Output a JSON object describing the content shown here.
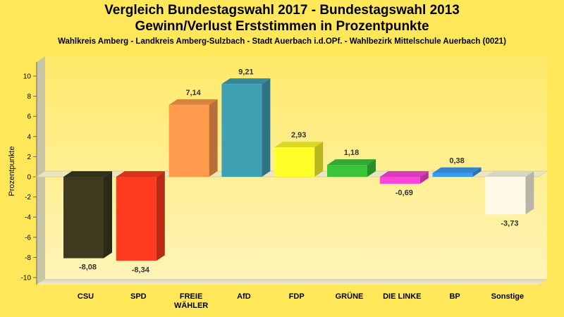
{
  "chart_data": {
    "type": "bar",
    "title": "Vergleich Bundestagswahl 2017 - Bundestagswahl 2013",
    "subtitle_line": "Gewinn/Verlust Erststimmen in Prozentpunkte",
    "subtitle": "Wahlkreis Amberg - Landkreis Amberg-Sulzbach - Stadt Auerbach i.d.OPf. - Wahlbezirk Mittelschule Auerbach (0021)",
    "ylabel": "Prozentpunkte",
    "ylim": [
      -10,
      10
    ],
    "yticks": [
      -10,
      -8,
      -6,
      -4,
      -2,
      0,
      2,
      4,
      6,
      8,
      10
    ],
    "grid": false,
    "categories": [
      "CSU",
      "SPD",
      "FREIE WÄHLER",
      "AfD",
      "FDP",
      "GRÜNE",
      "DIE LINKE",
      "BP",
      "Sonstige"
    ],
    "category_lines": [
      [
        "CSU"
      ],
      [
        "SPD"
      ],
      [
        "FREIE",
        "WÄHLER"
      ],
      [
        "AfD"
      ],
      [
        "FDP"
      ],
      [
        "GRÜNE"
      ],
      [
        "DIE LINKE"
      ],
      [
        "BP"
      ],
      [
        "Sonstige"
      ]
    ],
    "values": [
      -8.08,
      -8.34,
      7.14,
      9.21,
      2.93,
      1.18,
      -0.69,
      0.38,
      -3.73
    ],
    "value_labels": [
      "-8,08",
      "-8,34",
      "7,14",
      "9,21",
      "2,93",
      "1,18",
      "-0,69",
      "0,38",
      "-3,73"
    ],
    "colors": [
      "#3d3a1f",
      "#ff3a1e",
      "#ff9a4c",
      "#3fa0b4",
      "#ffff2a",
      "#3bc43a",
      "#ff44dd",
      "#3a9cf0",
      "#fffbe8"
    ]
  }
}
